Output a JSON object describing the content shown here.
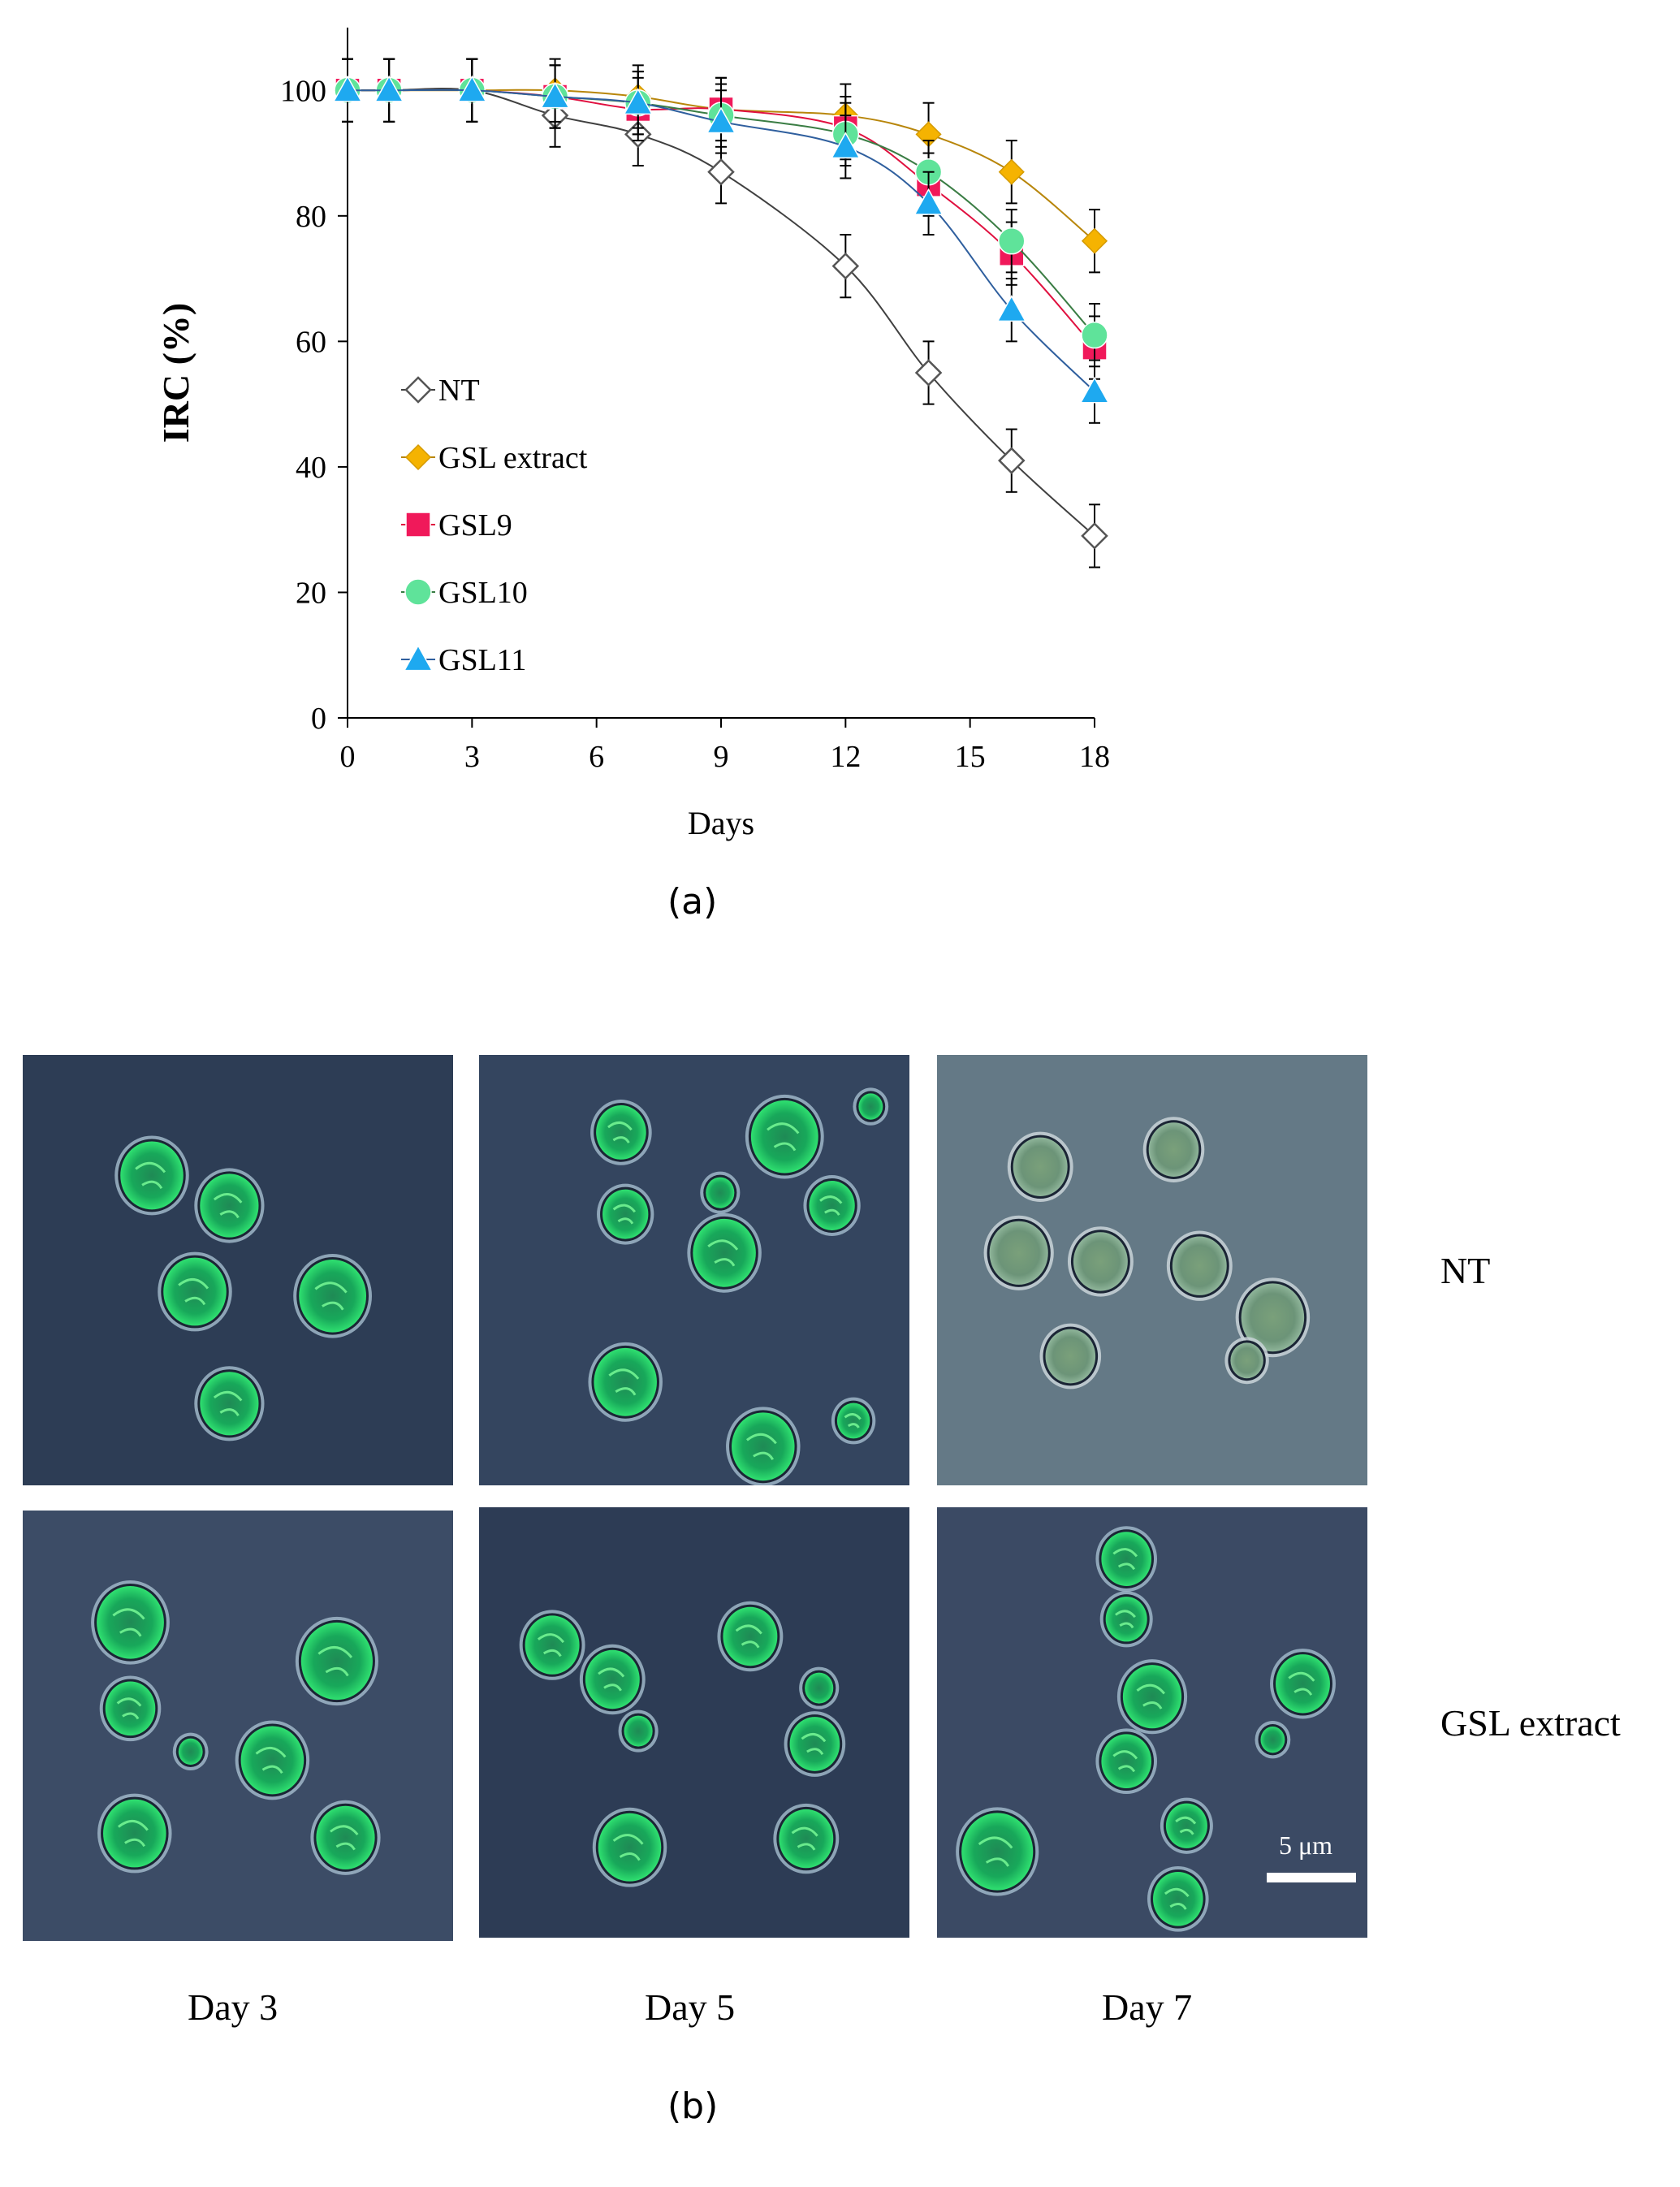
{
  "figure": {
    "caption_a": "(a)",
    "caption_b": "(b)",
    "row_labels": [
      "NT",
      "GSL extract"
    ],
    "column_labels": [
      "Day 3",
      "Day 5",
      "Day 7"
    ],
    "scale_bar": "5 μm"
  },
  "chart_data": {
    "type": "line",
    "xlabel": "Days",
    "ylabel": "IRC (%)",
    "xlim": [
      0,
      18
    ],
    "ylim": [
      0,
      110
    ],
    "xticks": [
      0,
      3,
      6,
      9,
      12,
      15,
      18
    ],
    "yticks": [
      0,
      20,
      40,
      60,
      80,
      100
    ],
    "grid": false,
    "legend": "inside lower-left",
    "x": [
      0,
      1,
      3,
      5,
      7,
      9,
      12,
      14,
      16,
      18
    ],
    "series": [
      {
        "name": "NT",
        "marker": "diamond-open",
        "color": "#ffffff",
        "line_color": "#404040",
        "values": [
          100,
          100,
          100,
          96,
          93,
          87,
          72,
          55,
          41,
          29
        ],
        "error": [
          5,
          5,
          5,
          5,
          5,
          5,
          5,
          5,
          5,
          5
        ]
      },
      {
        "name": "GSL extract",
        "marker": "diamond",
        "color": "#f5b301",
        "line_color": "#b8860b",
        "values": [
          100,
          100,
          100,
          100,
          99,
          97,
          96,
          93,
          87,
          76
        ],
        "error": [
          5,
          5,
          5,
          5,
          5,
          5,
          5,
          5,
          5,
          5
        ]
      },
      {
        "name": "GSL9",
        "marker": "square",
        "color": "#f0195a",
        "line_color": "#e0103f",
        "values": [
          100,
          100,
          100,
          99,
          97,
          97,
          94,
          85,
          74,
          59
        ],
        "error": [
          5,
          5,
          5,
          5,
          5,
          5,
          5,
          5,
          5,
          5
        ]
      },
      {
        "name": "GSL10",
        "marker": "circle",
        "color": "#5fe39a",
        "line_color": "#3a7d44",
        "values": [
          100,
          100,
          100,
          99,
          98,
          96,
          93,
          87,
          76,
          61
        ],
        "error": [
          5,
          5,
          5,
          5,
          5,
          5,
          5,
          5,
          5,
          5
        ]
      },
      {
        "name": "GSL11",
        "marker": "triangle",
        "color": "#1ea9f0",
        "line_color": "#2f5f9e",
        "values": [
          100,
          100,
          100,
          99,
          98,
          95,
          91,
          82,
          65,
          52
        ],
        "error": [
          5,
          5,
          5,
          5,
          5,
          5,
          5,
          5,
          5,
          5
        ]
      }
    ]
  },
  "micrographs": [
    {
      "row": "NT",
      "day": "Day 3",
      "background": "#2d3d55",
      "dim": false,
      "cells": [
        [
          0.3,
          0.28,
          0.15
        ],
        [
          0.48,
          0.35,
          0.14
        ],
        [
          0.4,
          0.55,
          0.15
        ],
        [
          0.72,
          0.56,
          0.16
        ],
        [
          0.48,
          0.81,
          0.14
        ]
      ]
    },
    {
      "row": "NT",
      "day": "Day 5",
      "background": "#34455f",
      "dim": false,
      "cells": [
        [
          0.33,
          0.18,
          0.12
        ],
        [
          0.71,
          0.19,
          0.16
        ],
        [
          0.91,
          0.12,
          0.06
        ],
        [
          0.56,
          0.32,
          0.07
        ],
        [
          0.34,
          0.37,
          0.11
        ],
        [
          0.57,
          0.46,
          0.15
        ],
        [
          0.82,
          0.35,
          0.11
        ],
        [
          0.34,
          0.76,
          0.15
        ],
        [
          0.66,
          0.91,
          0.15
        ],
        [
          0.87,
          0.85,
          0.08
        ]
      ]
    },
    {
      "row": "NT",
      "day": "Day 7",
      "background": "#647986",
      "dim": true,
      "cells": [
        [
          0.24,
          0.26,
          0.13
        ],
        [
          0.55,
          0.22,
          0.12
        ],
        [
          0.19,
          0.46,
          0.14
        ],
        [
          0.38,
          0.48,
          0.13
        ],
        [
          0.61,
          0.49,
          0.13
        ],
        [
          0.78,
          0.61,
          0.15
        ],
        [
          0.72,
          0.71,
          0.08
        ],
        [
          0.31,
          0.7,
          0.12
        ]
      ]
    },
    {
      "row": "GSL extract",
      "day": "Day 3",
      "background": "#3c4c66",
      "dim": false,
      "cells": [
        [
          0.25,
          0.26,
          0.16
        ],
        [
          0.25,
          0.46,
          0.12
        ],
        [
          0.73,
          0.35,
          0.17
        ],
        [
          0.39,
          0.56,
          0.06
        ],
        [
          0.58,
          0.58,
          0.15
        ],
        [
          0.26,
          0.75,
          0.15
        ],
        [
          0.75,
          0.76,
          0.14
        ]
      ]
    },
    {
      "row": "GSL extract",
      "day": "Day 5",
      "background": "#2d3c55",
      "dim": false,
      "cells": [
        [
          0.17,
          0.32,
          0.13
        ],
        [
          0.31,
          0.4,
          0.13
        ],
        [
          0.37,
          0.52,
          0.07
        ],
        [
          0.63,
          0.3,
          0.13
        ],
        [
          0.79,
          0.42,
          0.07
        ],
        [
          0.78,
          0.55,
          0.12
        ],
        [
          0.35,
          0.79,
          0.15
        ],
        [
          0.76,
          0.77,
          0.13
        ]
      ]
    },
    {
      "row": "GSL extract",
      "day": "Day 7",
      "background": "#3b4a64",
      "dim": false,
      "cells": [
        [
          0.44,
          0.12,
          0.12
        ],
        [
          0.44,
          0.26,
          0.1
        ],
        [
          0.5,
          0.44,
          0.14
        ],
        [
          0.44,
          0.59,
          0.12
        ],
        [
          0.85,
          0.41,
          0.13
        ],
        [
          0.78,
          0.54,
          0.06
        ],
        [
          0.58,
          0.74,
          0.1
        ],
        [
          0.56,
          0.91,
          0.12
        ],
        [
          0.14,
          0.8,
          0.17
        ]
      ]
    }
  ]
}
